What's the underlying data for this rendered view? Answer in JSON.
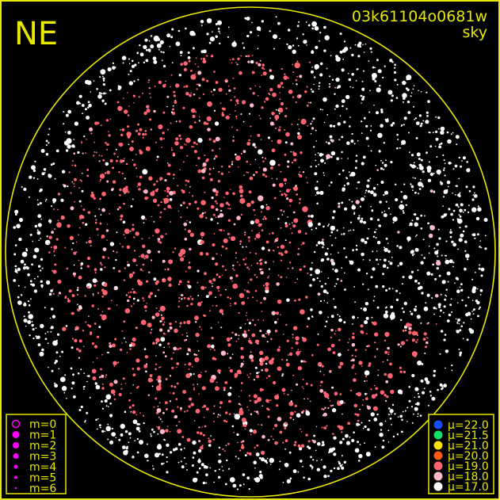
{
  "header": {
    "direction": "NE",
    "image_id": "03k61104o0681w",
    "mode": "sky"
  },
  "colors": {
    "frame": "#e8e800",
    "magnitude_marker": "#ff00ff",
    "sky_background": "#000000"
  },
  "magnitude_legend": {
    "items": [
      {
        "label": "m=0",
        "hollow": true
      },
      {
        "label": "m=1"
      },
      {
        "label": "m=2"
      },
      {
        "label": "m=3"
      },
      {
        "label": "m=4"
      },
      {
        "label": "m=5"
      },
      {
        "label": "m=6"
      }
    ]
  },
  "brightness_legend": {
    "items": [
      {
        "label": "μ=22.0",
        "color": "#1a4cff"
      },
      {
        "label": "μ=21.5",
        "color": "#12e068"
      },
      {
        "label": "μ=21.0",
        "color": "#ffe000"
      },
      {
        "label": "μ=20.0",
        "color": "#ff5a14"
      },
      {
        "label": "μ=19.0",
        "color": "#ff6470"
      },
      {
        "label": "μ=18.0",
        "color": "#ffb8c8"
      },
      {
        "label": "μ=17.0",
        "color": "#ffffff"
      }
    ]
  }
}
